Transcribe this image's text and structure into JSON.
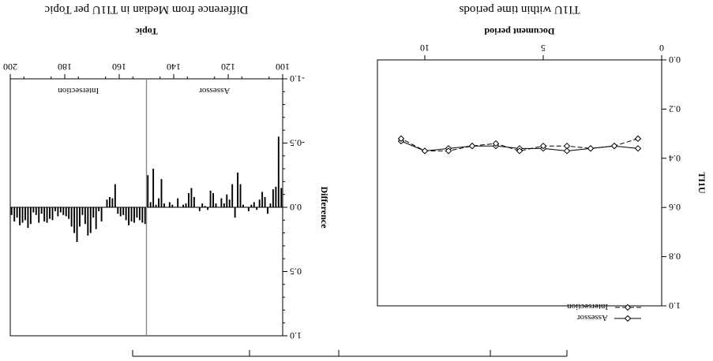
{
  "chart_data": [
    {
      "type": "line",
      "title": "TI1U within time periods",
      "xlabel": "Document period",
      "ylabel": "TI1U",
      "xlim": [
        0,
        12
      ],
      "ylim": [
        0.0,
        1.0
      ],
      "xticks": [
        0,
        5,
        10
      ],
      "xtick_labels": [
        "0",
        "5",
        "10"
      ],
      "yticks": [
        0.0,
        0.2,
        0.4,
        0.6,
        0.8,
        1.0
      ],
      "ytick_labels": [
        "0.0",
        "0.2",
        "0.4",
        "0.6",
        "0.8",
        "1.0"
      ],
      "legend_position": "bottom-left",
      "x": [
        1,
        2,
        3,
        4,
        5,
        6,
        7,
        8,
        9,
        10,
        11
      ],
      "series": [
        {
          "name": "Assessor",
          "style": "solid",
          "marker": "diamond",
          "values": [
            0.36,
            0.35,
            0.36,
            0.37,
            0.36,
            0.36,
            0.35,
            0.35,
            0.36,
            0.37,
            0.33
          ]
        },
        {
          "name": "Intersection",
          "style": "dashed",
          "marker": "diamond",
          "values": [
            0.32,
            0.35,
            0.36,
            0.35,
            0.35,
            0.37,
            0.34,
            0.35,
            0.37,
            0.37,
            0.32
          ]
        }
      ]
    },
    {
      "type": "bar",
      "title": "Difference from Median in TI1U per Topic",
      "xlabel": "Topic",
      "ylabel": "Difference",
      "xlim": [
        100,
        200
      ],
      "ylim": [
        -1.0,
        1.0
      ],
      "xticks": [
        100,
        120,
        140,
        160,
        180,
        200
      ],
      "xtick_labels": [
        "100",
        "120",
        "140",
        "160",
        "180",
        "200"
      ],
      "yticks": [
        -1.0,
        -0.5,
        0.0,
        0.5,
        1.0
      ],
      "ytick_labels": [
        "-1.0",
        "-0.5",
        "0.0",
        "0.5",
        "1.0"
      ],
      "separator_x": 150,
      "region_labels": [
        "Assessor",
        "Intersection"
      ],
      "x": [
        101,
        102,
        103,
        104,
        105,
        106,
        107,
        108,
        109,
        110,
        111,
        112,
        113,
        114,
        115,
        116,
        117,
        118,
        119,
        120,
        121,
        122,
        123,
        124,
        125,
        126,
        127,
        128,
        129,
        130,
        131,
        132,
        133,
        134,
        135,
        136,
        137,
        138,
        139,
        140,
        141,
        142,
        143,
        144,
        145,
        146,
        147,
        148,
        149,
        150,
        151,
        152,
        153,
        154,
        155,
        156,
        157,
        158,
        159,
        160,
        161,
        162,
        163,
        164,
        165,
        166,
        167,
        168,
        169,
        170,
        171,
        172,
        173,
        174,
        175,
        176,
        177,
        178,
        179,
        180,
        181,
        182,
        183,
        184,
        185,
        186,
        187,
        188,
        189,
        190,
        191,
        192,
        193,
        194,
        195,
        196,
        197,
        198,
        199,
        200
      ],
      "values": [
        -0.15,
        -0.55,
        -0.16,
        -0.14,
        -0.03,
        0.05,
        -0.08,
        -0.12,
        -0.06,
        0.02,
        -0.04,
        -0.02,
        0.03,
        0.0,
        -0.02,
        -0.18,
        -0.27,
        0.08,
        -0.18,
        -0.06,
        -0.1,
        -0.03,
        -0.07,
        0.0,
        -0.03,
        -0.11,
        -0.13,
        0.02,
        -0.01,
        -0.03,
        0.03,
        0.0,
        -0.08,
        -0.15,
        -0.11,
        -0.03,
        -0.02,
        0.0,
        -0.07,
        0.0,
        -0.02,
        -0.04,
        0.0,
        -0.03,
        -0.22,
        -0.07,
        -0.02,
        -0.3,
        -0.04,
        -0.25,
        0.13,
        0.12,
        0.1,
        0.08,
        0.12,
        0.11,
        0.14,
        0.1,
        0.06,
        0.07,
        0.05,
        -0.18,
        -0.07,
        -0.08,
        -0.06,
        0.0,
        0.11,
        0.03,
        0.17,
        0.08,
        0.2,
        0.22,
        0.13,
        0.06,
        0.15,
        0.27,
        0.2,
        0.15,
        0.09,
        0.07,
        0.06,
        0.04,
        0.07,
        0.03,
        0.1,
        0.09,
        0.12,
        0.11,
        0.05,
        0.12,
        0.06,
        0.04,
        0.13,
        0.16,
        0.1,
        0.12,
        0.14,
        0.08,
        0.11,
        0.06
      ]
    }
  ]
}
